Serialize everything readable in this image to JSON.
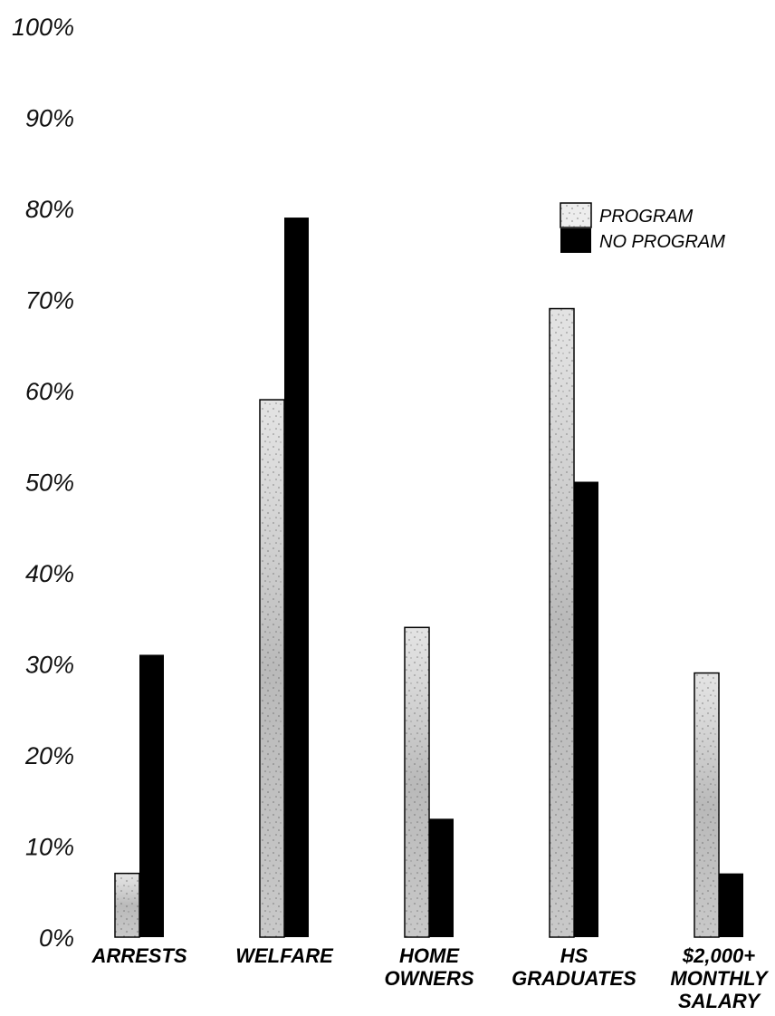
{
  "chart_data": {
    "type": "bar",
    "title": "",
    "xlabel": "",
    "ylabel": "",
    "ylim": [
      0,
      100
    ],
    "yticks": [
      "0%",
      "10%",
      "20%",
      "30%",
      "40%",
      "50%",
      "60%",
      "70%",
      "80%",
      "90%",
      "100%"
    ],
    "categories": [
      [
        "ARRESTS"
      ],
      [
        "WELFARE"
      ],
      [
        "HOME",
        "OWNERS"
      ],
      [
        "HS",
        "GRADUATES"
      ],
      [
        "$2,000+",
        "MONTHLY",
        "SALARY"
      ]
    ],
    "series": [
      {
        "name": "PROGRAM",
        "values": [
          7,
          59,
          34,
          69,
          29
        ],
        "fill": "textured-light"
      },
      {
        "name": "NO PROGRAM",
        "values": [
          31,
          79,
          13,
          50,
          7
        ],
        "fill": "#000000"
      }
    ],
    "legend_position": "top-right",
    "grid": false
  }
}
